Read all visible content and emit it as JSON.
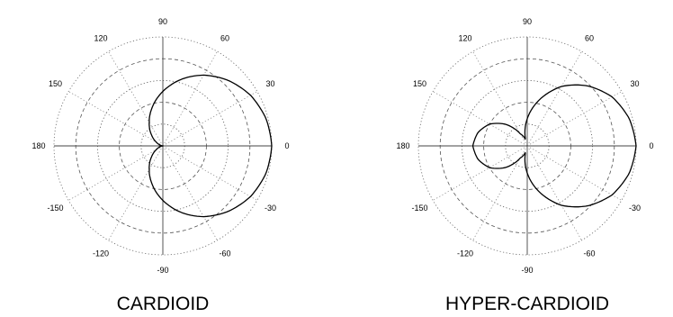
{
  "chart_data": [
    {
      "type": "line",
      "subtype": "polar",
      "caption": "CARDIOID",
      "angle_tick_labels": [
        "0",
        "30",
        "60",
        "90",
        "120",
        "150",
        "180",
        "-150",
        "-120",
        "-90",
        "-60",
        "-30"
      ],
      "angle_ticks_deg": [
        0,
        30,
        60,
        90,
        120,
        150,
        180,
        -150,
        -120,
        -90,
        -60,
        -30
      ],
      "radial_rings": [
        0.2,
        0.4,
        0.6,
        0.8,
        1.0
      ],
      "grid": true,
      "series": [
        {
          "theta_deg": [
            0,
            15,
            30,
            45,
            60,
            75,
            90,
            105,
            120,
            135,
            150,
            165,
            180,
            -165,
            -150,
            -135,
            -120,
            -105,
            -90,
            -75,
            -60,
            -45,
            -30,
            -15
          ],
          "r": [
            1.0,
            0.98,
            0.93,
            0.85,
            0.75,
            0.63,
            0.5,
            0.37,
            0.25,
            0.15,
            0.07,
            0.02,
            0.0,
            0.02,
            0.07,
            0.15,
            0.25,
            0.37,
            0.5,
            0.63,
            0.75,
            0.85,
            0.93,
            0.98
          ]
        }
      ]
    },
    {
      "type": "line",
      "subtype": "polar",
      "caption": "HYPER-CARDIOID",
      "angle_tick_labels": [
        "0",
        "30",
        "60",
        "90",
        "120",
        "150",
        "180",
        "-150",
        "-120",
        "-90",
        "-60",
        "-30"
      ],
      "angle_ticks_deg": [
        0,
        30,
        60,
        90,
        120,
        150,
        180,
        -150,
        -120,
        -90,
        -60,
        -30
      ],
      "radial_rings": [
        0.2,
        0.4,
        0.6,
        0.8,
        1.0
      ],
      "grid": true,
      "series": [
        {
          "theta_deg": [
            0,
            15,
            30,
            45,
            60,
            75,
            90,
            105,
            120,
            135,
            150,
            165,
            180,
            -165,
            -150,
            -135,
            -120,
            -105,
            -90,
            -75,
            -60,
            -45,
            -30,
            -15
          ],
          "r": [
            1.0,
            0.97,
            0.9,
            0.78,
            0.63,
            0.44,
            0.25,
            0.06,
            0.13,
            0.28,
            0.4,
            0.47,
            0.5,
            0.47,
            0.4,
            0.28,
            0.13,
            0.06,
            0.25,
            0.44,
            0.63,
            0.78,
            0.9,
            0.97
          ]
        }
      ]
    }
  ]
}
